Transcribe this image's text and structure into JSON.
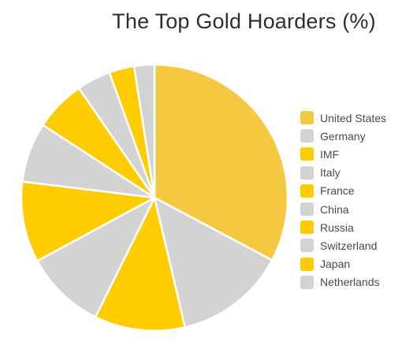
{
  "chart_data": {
    "type": "pie",
    "title": "The Top Gold Hoarders (%)",
    "legend_position": "right",
    "slices": [
      {
        "label": "United States",
        "value": 33.4,
        "color": "#f5c842"
      },
      {
        "label": "Germany",
        "value": 13.8,
        "color": "#d3d3d3"
      },
      {
        "label": "IMF",
        "value": 11.2,
        "color": "#ffcc00"
      },
      {
        "label": "Italy",
        "value": 10.0,
        "color": "#d3d3d3"
      },
      {
        "label": "France",
        "value": 10.0,
        "color": "#ffcc00"
      },
      {
        "label": "China",
        "value": 7.4,
        "color": "#d3d3d3"
      },
      {
        "label": "Russia",
        "value": 6.3,
        "color": "#ffcc00"
      },
      {
        "label": "Switzerland",
        "value": 4.2,
        "color": "#d3d3d3"
      },
      {
        "label": "Japan",
        "value": 3.1,
        "color": "#ffcc00"
      },
      {
        "label": "Netherlands",
        "value": 2.5,
        "color": "#d3d3d3"
      }
    ]
  }
}
